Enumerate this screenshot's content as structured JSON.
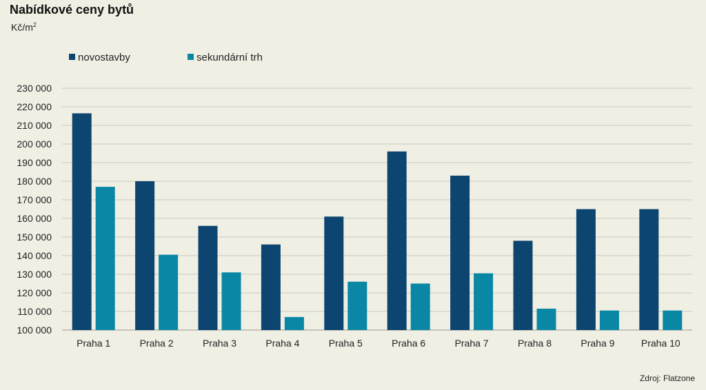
{
  "chart_data": {
    "type": "bar",
    "title": "Nabídkové ceny bytů",
    "unit_base": "Kč/m",
    "unit_sup": "2",
    "source": "Zdroj: Flatzone",
    "categories": [
      "Praha 1",
      "Praha 2",
      "Praha 3",
      "Praha 4",
      "Praha 5",
      "Praha 6",
      "Praha 7",
      "Praha 8",
      "Praha 9",
      "Praha 10"
    ],
    "series": [
      {
        "name": "novostavby",
        "color": "#0b4570",
        "values": [
          216500,
          180000,
          156000,
          146000,
          161000,
          196000,
          183000,
          148000,
          165000,
          165000
        ]
      },
      {
        "name": "sekundární trh",
        "color": "#0a87a5",
        "values": [
          177000,
          140500,
          131000,
          107000,
          126000,
          125000,
          130500,
          111500,
          110500,
          110500
        ]
      }
    ],
    "ylim": [
      100000,
      230000
    ],
    "yticks": [
      "100 000",
      "110 000",
      "120 000",
      "130 000",
      "140 000",
      "150 000",
      "160 000",
      "170 000",
      "180 000",
      "190 000",
      "200 000",
      "210 000",
      "220 000",
      "230 000"
    ],
    "grid": true,
    "legend_position": "top-left"
  }
}
